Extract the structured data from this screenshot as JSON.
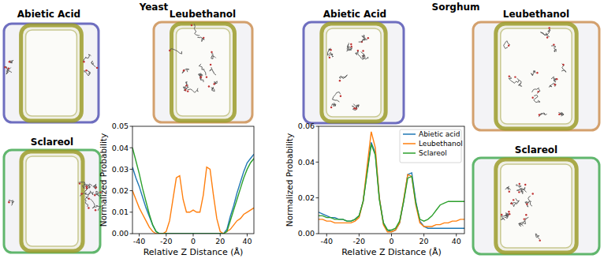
{
  "figure": {
    "groups": [
      "Yeast",
      "Sorghum"
    ],
    "snapshots": [
      "Abietic Acid",
      "Leubethanol",
      "Sclareol",
      "Abietic Acid",
      "Leubethanol",
      "Sclareol"
    ]
  },
  "chart_data": [
    {
      "type": "line",
      "x_label": "Relative Z Distance (Å)",
      "y_label": "Normalized Probability",
      "x": [
        -45,
        -42.5,
        -40,
        -37.5,
        -35,
        -32.5,
        -30,
        -27.5,
        -25,
        -22.5,
        -20,
        -17.5,
        -15,
        -12.5,
        -10,
        -7.5,
        -5,
        -2.5,
        0,
        2.5,
        5,
        7.5,
        10,
        12.5,
        15,
        17.5,
        20,
        22.5,
        25,
        27.5,
        30,
        32.5,
        35,
        37.5,
        40,
        42.5,
        45
      ],
      "xlim": [
        -45,
        45
      ],
      "xticks": [
        -40,
        -20,
        0,
        20,
        40
      ],
      "ylim": [
        0,
        0.05
      ],
      "yticks": [
        {
          "value": 0,
          "label": "0.00"
        },
        {
          "value": 0.01,
          "label": "0.01"
        },
        {
          "value": 0.02,
          "label": "0.02"
        },
        {
          "value": 0.03,
          "label": "0.03"
        },
        {
          "value": 0.04,
          "label": "0.04"
        },
        {
          "value": 0.05,
          "label": "0.05"
        }
      ],
      "series": [
        {
          "color": "#1f77b4",
          "values": [
            0.031,
            0.026,
            0.022,
            0.017,
            0.012,
            0.008,
            0.004,
            0.001,
            0,
            0,
            0,
            0,
            0,
            0,
            0,
            0,
            0,
            0,
            0,
            0,
            0,
            0,
            0,
            0,
            0,
            0,
            0,
            0,
            0.002,
            0.008,
            0.013,
            0.019,
            0.024,
            0.029,
            0.033,
            0.035,
            0.037
          ]
        },
        {
          "color": "#ff7f0e",
          "values": [
            0.02,
            0.016,
            0.012,
            0.009,
            0.006,
            0.003,
            0.001,
            0,
            0,
            0,
            0.001,
            0.006,
            0.016,
            0.026,
            0.027,
            0.016,
            0.01,
            0.01,
            0.011,
            0.01,
            0.01,
            0.018,
            0.031,
            0.03,
            0.018,
            0.007,
            0.001,
            0,
            0.001,
            0.002,
            0.004,
            0.006,
            0.007,
            0.009,
            0.01,
            0.011,
            0.012
          ]
        },
        {
          "color": "#2ca02c",
          "values": [
            0.04,
            0.034,
            0.028,
            0.021,
            0.015,
            0.009,
            0.004,
            0.001,
            0,
            0,
            0,
            0,
            0,
            0,
            0,
            0,
            0,
            0,
            0,
            0,
            0,
            0,
            0,
            0,
            0,
            0,
            0,
            0,
            0.001,
            0.006,
            0.011,
            0.016,
            0.021,
            0.026,
            0.03,
            0.033,
            0.035
          ]
        }
      ]
    },
    {
      "type": "line",
      "x_label": "Relative Z Distance (Å)",
      "y_label": "Normalized Probability",
      "legend": "upper right",
      "x": [
        -45,
        -42.5,
        -40,
        -37.5,
        -35,
        -32.5,
        -30,
        -27.5,
        -25,
        -22.5,
        -20,
        -17.5,
        -15,
        -12.5,
        -10,
        -7.5,
        -5,
        -2.5,
        0,
        2.5,
        5,
        7.5,
        10,
        12.5,
        15,
        17.5,
        20,
        22.5,
        25,
        27.5,
        30,
        32.5,
        35,
        37.5,
        40,
        42.5,
        45
      ],
      "xlim": [
        -45,
        45
      ],
      "xticks": [
        -40,
        -20,
        0,
        20,
        40
      ],
      "ylim": [
        0,
        0.06
      ],
      "yticks": [
        {
          "value": 0,
          "label": "0.00"
        },
        {
          "value": 0.02,
          "label": "0.02"
        },
        {
          "value": 0.04,
          "label": "0.04"
        },
        {
          "value": 0.06,
          "label": "0.06"
        }
      ],
      "series": [
        {
          "name": "Abietic acid",
          "color": "#1f77b4",
          "values": [
            0.012,
            0.011,
            0.01,
            0.009,
            0.009,
            0.008,
            0.008,
            0.007,
            0.007,
            0.008,
            0.01,
            0.018,
            0.035,
            0.051,
            0.045,
            0.02,
            0.006,
            0.002,
            0.001,
            0.002,
            0.006,
            0.018,
            0.033,
            0.034,
            0.018,
            0.007,
            0.004,
            0.003,
            0.003,
            0.003,
            0.003,
            0.003,
            0.003,
            0.003,
            0.003,
            0.003,
            0.003
          ]
        },
        {
          "name": "Leubethanol",
          "color": "#ff7f0e",
          "values": [
            0.008,
            0.008,
            0.007,
            0.007,
            0.006,
            0.006,
            0.006,
            0.006,
            0.006,
            0.007,
            0.009,
            0.018,
            0.038,
            0.057,
            0.048,
            0.02,
            0.005,
            0.001,
            0.001,
            0.002,
            0.006,
            0.019,
            0.033,
            0.032,
            0.016,
            0.006,
            0.004,
            0.004,
            0.004,
            0.005,
            0.005,
            0.006,
            0.006,
            0.007,
            0.007,
            0.008,
            0.008
          ]
        },
        {
          "name": "Sclareol",
          "color": "#2ca02c",
          "values": [
            0.01,
            0.01,
            0.009,
            0.009,
            0.008,
            0.008,
            0.008,
            0.007,
            0.007,
            0.008,
            0.01,
            0.018,
            0.034,
            0.05,
            0.044,
            0.019,
            0.006,
            0.002,
            0.002,
            0.003,
            0.007,
            0.018,
            0.031,
            0.032,
            0.017,
            0.008,
            0.007,
            0.008,
            0.01,
            0.013,
            0.016,
            0.017,
            0.018,
            0.018,
            0.018,
            0.018,
            0.018
          ]
        }
      ]
    }
  ]
}
